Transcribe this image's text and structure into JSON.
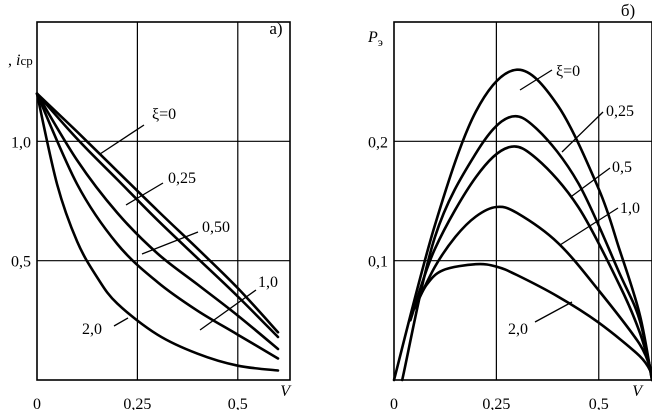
{
  "chart_data": [
    {
      "type": "line",
      "panel_label": "а)",
      "ylabel_parts": [
        "",
        ", ",
        "i",
        "ср"
      ],
      "xlabel": "V",
      "xlim": [
        0,
        0.63
      ],
      "ylim": [
        0,
        1.5
      ],
      "xticks": [
        0,
        0.25,
        0.5
      ],
      "xtick_labels": [
        "0",
        "0,25",
        "0,5"
      ],
      "yticks": [
        0.5,
        1.0
      ],
      "ytick_labels": [
        "0,5",
        "1,0"
      ],
      "grid": true,
      "series": [
        {
          "name": "ξ=0",
          "x": [
            0,
            0.1,
            0.2,
            0.3,
            0.4,
            0.5,
            0.6
          ],
          "y": [
            1.2,
            1.04,
            0.875,
            0.71,
            0.55,
            0.385,
            0.2
          ]
        },
        {
          "name": "0,25",
          "x": [
            0,
            0.1,
            0.2,
            0.3,
            0.4,
            0.5,
            0.6
          ],
          "y": [
            1.2,
            1.01,
            0.84,
            0.67,
            0.51,
            0.35,
            0.18
          ]
        },
        {
          "name": "0,50",
          "x": [
            0,
            0.1,
            0.2,
            0.3,
            0.4,
            0.5,
            0.6
          ],
          "y": [
            1.2,
            0.92,
            0.7,
            0.53,
            0.4,
            0.27,
            0.13
          ]
        },
        {
          "name": "1,0",
          "x": [
            0,
            0.1,
            0.2,
            0.3,
            0.4,
            0.5,
            0.6
          ],
          "y": [
            1.2,
            0.82,
            0.57,
            0.41,
            0.29,
            0.19,
            0.09
          ]
        },
        {
          "name": "2,0",
          "x": [
            0,
            0.05,
            0.1,
            0.15,
            0.2,
            0.3,
            0.4,
            0.5,
            0.6
          ],
          "y": [
            1.2,
            0.82,
            0.58,
            0.43,
            0.32,
            0.19,
            0.11,
            0.06,
            0.04
          ]
        }
      ]
    },
    {
      "type": "line",
      "panel_label": "б)",
      "ylabel_parts": [
        "P",
        "э"
      ],
      "xlabel": "V",
      "xlim": [
        0,
        0.63
      ],
      "ylim": [
        0,
        0.3
      ],
      "xticks": [
        0,
        0.25,
        0.5
      ],
      "xtick_labels": [
        "0",
        "0,25",
        "0,5"
      ],
      "yticks": [
        0.1,
        0.2
      ],
      "ytick_labels": [
        "0,1",
        "0,2"
      ],
      "grid": true,
      "series": [
        {
          "name": "ξ=0",
          "x": [
            0,
            0.1,
            0.2,
            0.3,
            0.4,
            0.5,
            0.55,
            0.6,
            0.63
          ],
          "y": [
            0,
            0.13,
            0.225,
            0.26,
            0.23,
            0.16,
            0.11,
            0.055,
            0.0
          ]
        },
        {
          "name": "0,25",
          "x": [
            0.02,
            0.1,
            0.2,
            0.28,
            0.35,
            0.45,
            0.55,
            0.6,
            0.63
          ],
          "y": [
            0.0,
            0.12,
            0.19,
            0.22,
            0.21,
            0.165,
            0.09,
            0.05,
            0.0
          ]
        },
        {
          "name": "0,5",
          "x": [
            0.04,
            0.1,
            0.2,
            0.28,
            0.35,
            0.45,
            0.55,
            0.6,
            0.63
          ],
          "y": [
            0.05,
            0.11,
            0.17,
            0.195,
            0.185,
            0.145,
            0.08,
            0.04,
            0.005
          ]
        },
        {
          "name": "1,0",
          "x": [
            0.05,
            0.1,
            0.15,
            0.2,
            0.25,
            0.3,
            0.4,
            0.5,
            0.6,
            0.63
          ],
          "y": [
            0.06,
            0.095,
            0.12,
            0.137,
            0.145,
            0.14,
            0.115,
            0.075,
            0.03,
            0.005
          ]
        },
        {
          "name": "2,0",
          "x": [
            0.05,
            0.08,
            0.12,
            0.2,
            0.25,
            0.3,
            0.4,
            0.5,
            0.6,
            0.63
          ],
          "y": [
            0.06,
            0.08,
            0.092,
            0.097,
            0.095,
            0.088,
            0.07,
            0.048,
            0.02,
            0.005
          ]
        }
      ]
    }
  ]
}
